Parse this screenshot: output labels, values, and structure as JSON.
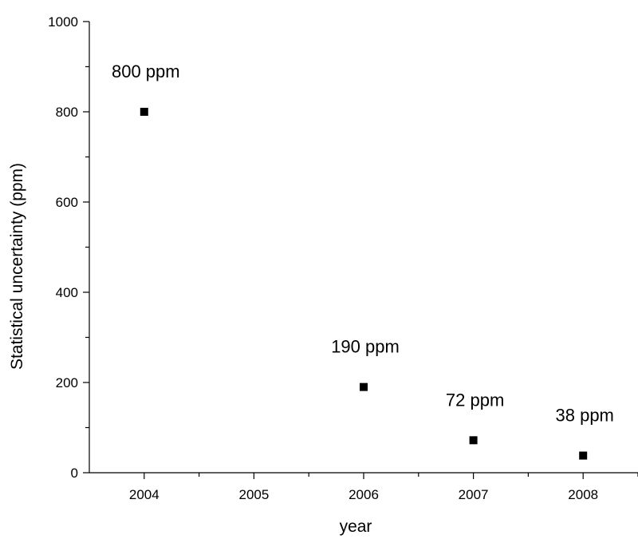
{
  "chart_data": {
    "type": "scatter",
    "xlabel": "year",
    "ylabel": "Statistical uncertainty (ppm)",
    "xlim": [
      2003.5,
      2008.5
    ],
    "ylim": [
      0,
      1000
    ],
    "x_ticks": [
      2004,
      2005,
      2006,
      2007,
      2008
    ],
    "y_ticks": [
      0,
      200,
      400,
      600,
      800,
      1000
    ],
    "grid": false,
    "marker": "square",
    "marker_color": "#000000",
    "series": [
      {
        "points": [
          {
            "x": 2004,
            "y": 800,
            "label": "800 ppm"
          },
          {
            "x": 2006,
            "y": 190,
            "label": "190 ppm"
          },
          {
            "x": 2007,
            "y": 72,
            "label": "72 ppm"
          },
          {
            "x": 2008,
            "y": 38,
            "label": "38 ppm"
          }
        ]
      }
    ]
  }
}
